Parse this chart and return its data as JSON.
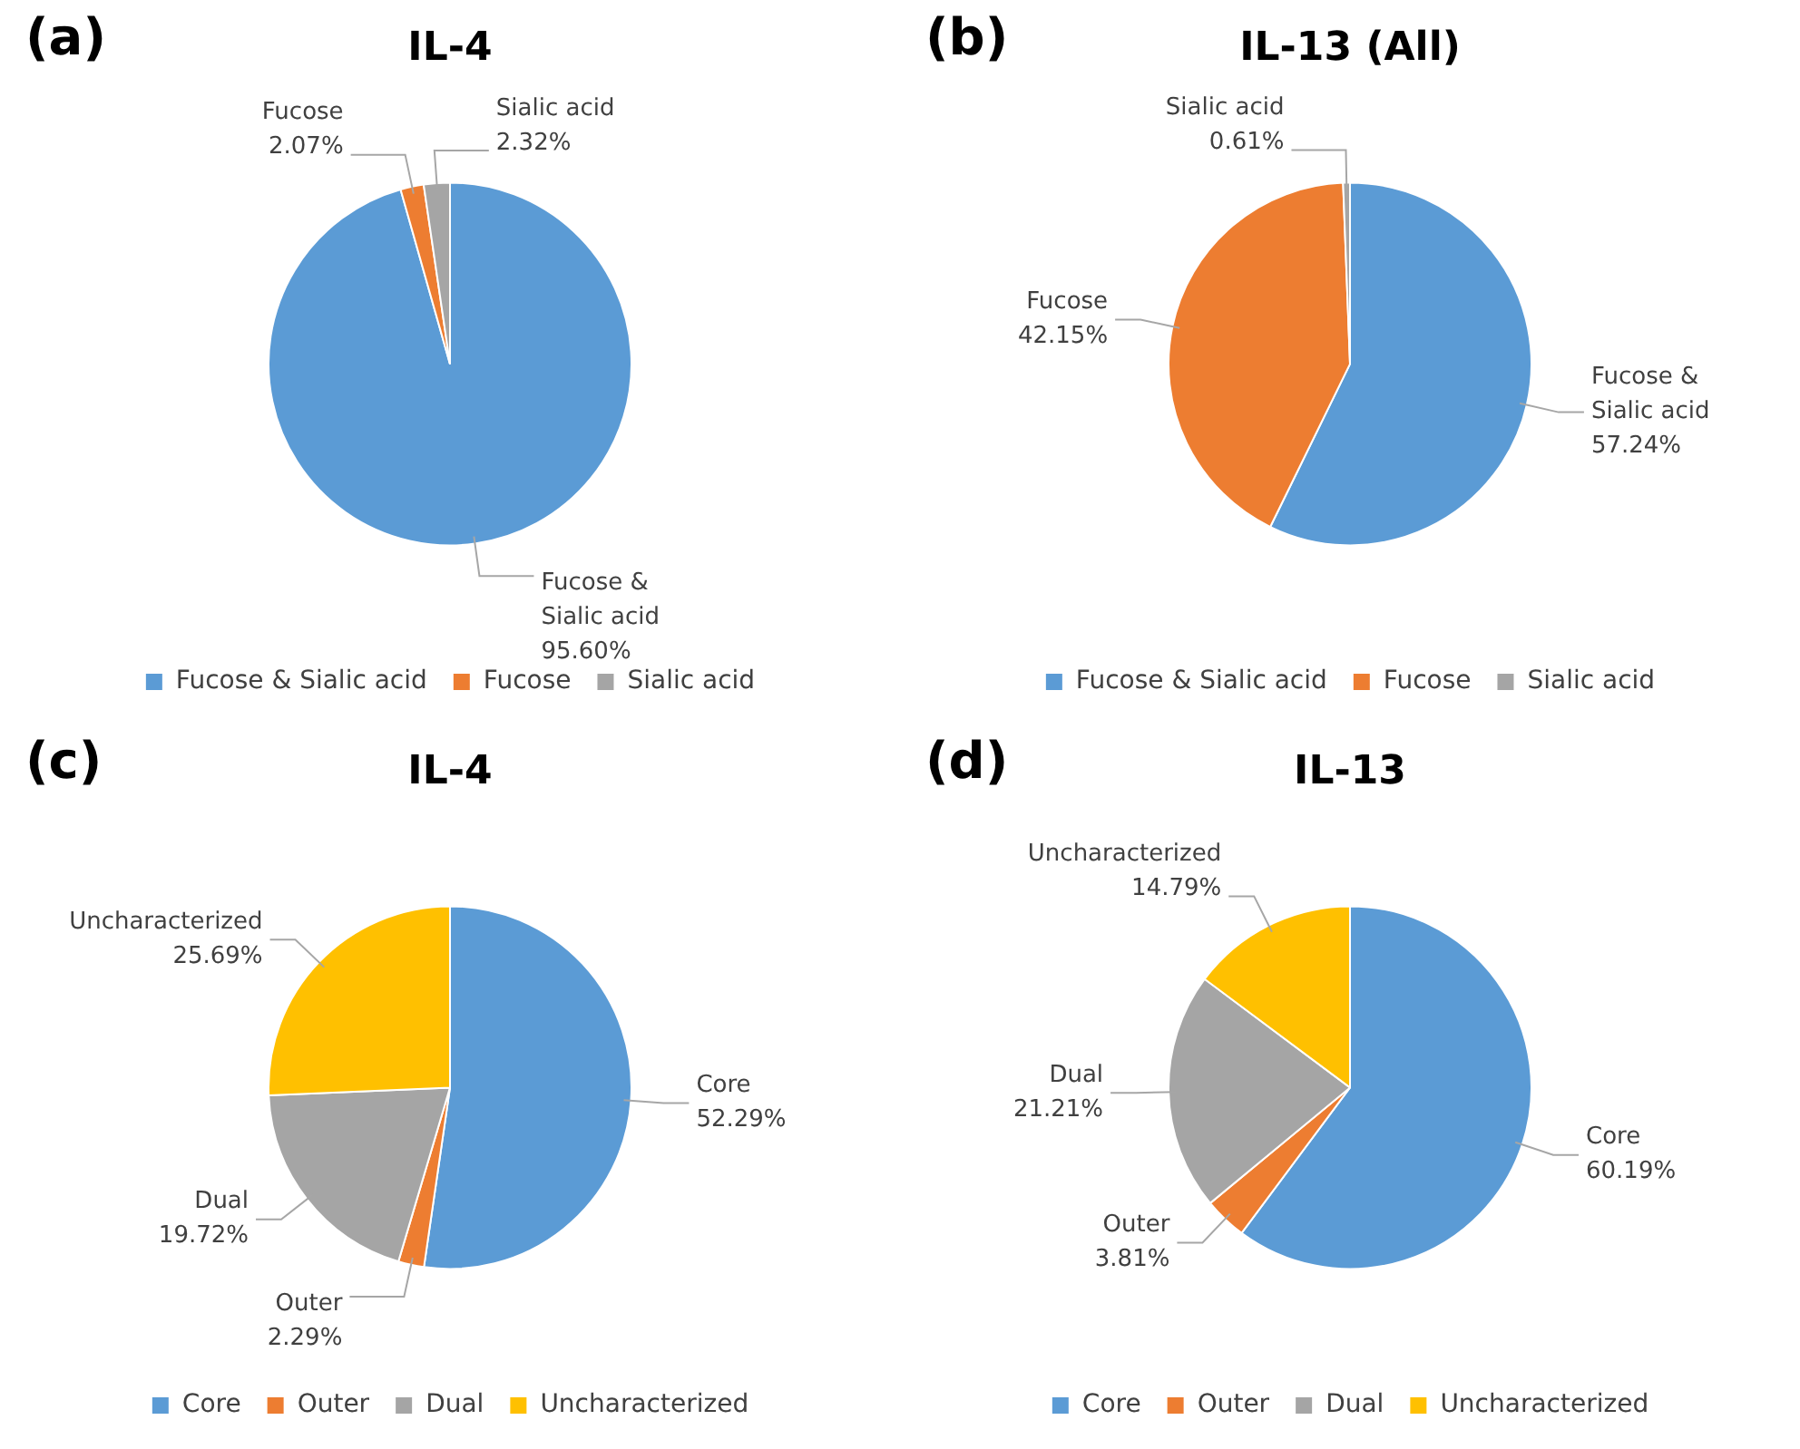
{
  "chart_data": [
    {
      "type": "pie",
      "title": "IL-4",
      "annotations": [
        "(a)"
      ],
      "categories": [
        "Fucose & Sialic acid",
        "Fucose",
        "Sialic acid"
      ],
      "values": [
        95.6,
        2.07,
        2.32
      ],
      "value_labels": [
        "95.60%",
        "2.07%",
        "2.32%"
      ],
      "colors": [
        "#5b9bd5",
        "#ed7d31",
        "#a5a5a5"
      ],
      "legend": "bottom"
    },
    {
      "type": "pie",
      "title": "IL-13 (All)",
      "annotations": [
        "(b)"
      ],
      "categories": [
        "Fucose & Sialic acid",
        "Fucose",
        "Sialic acid"
      ],
      "values": [
        57.24,
        42.15,
        0.61
      ],
      "value_labels": [
        "57.24%",
        "42.15%",
        "0.61%"
      ],
      "colors": [
        "#5b9bd5",
        "#ed7d31",
        "#a5a5a5"
      ],
      "legend": "bottom"
    },
    {
      "type": "pie",
      "title": "IL-4",
      "annotations": [
        "(c)"
      ],
      "categories": [
        "Core",
        "Outer",
        "Dual",
        "Uncharacterized"
      ],
      "values": [
        52.29,
        2.29,
        19.72,
        25.69
      ],
      "value_labels": [
        "52.29%",
        "2.29%",
        "19.72%",
        "25.69%"
      ],
      "colors": [
        "#5b9bd5",
        "#ed7d31",
        "#a5a5a5",
        "#ffc000"
      ],
      "legend": "bottom"
    },
    {
      "type": "pie",
      "title": "IL-13",
      "annotations": [
        "(d)"
      ],
      "categories": [
        "Core",
        "Outer",
        "Dual",
        "Uncharacterized"
      ],
      "values": [
        60.19,
        3.81,
        21.21,
        14.79
      ],
      "value_labels": [
        "60.19%",
        "3.81%",
        "21.21%",
        "14.79%"
      ],
      "colors": [
        "#5b9bd5",
        "#ed7d31",
        "#a5a5a5",
        "#ffc000"
      ],
      "legend": "bottom"
    }
  ]
}
